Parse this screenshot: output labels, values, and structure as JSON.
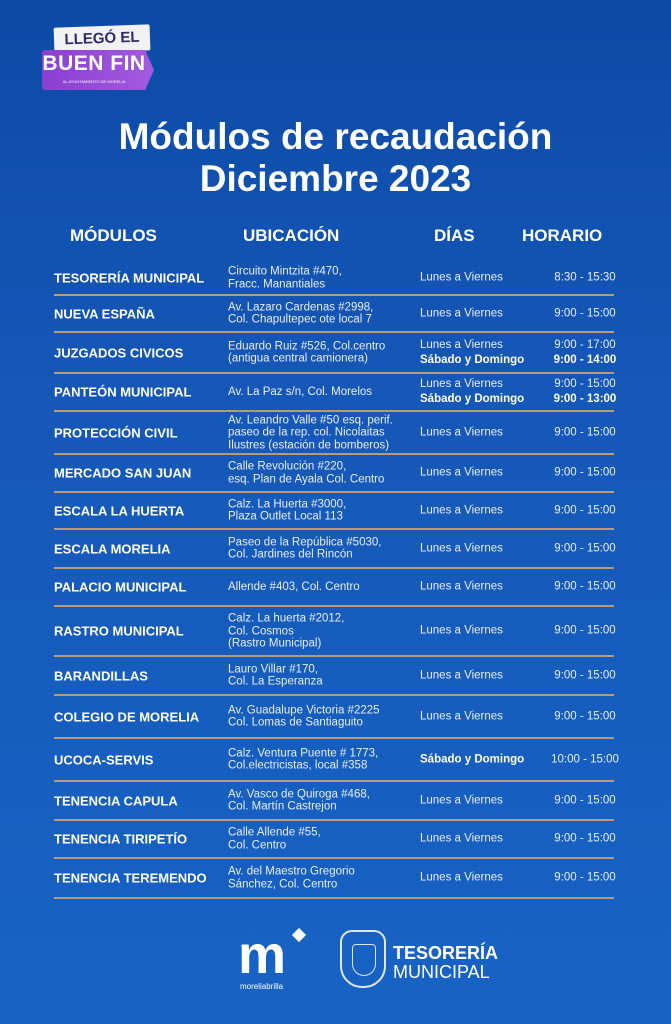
{
  "badge": {
    "line1": "LLEGÓ EL",
    "line2": "BUEN FIN",
    "line3": "AL AYUNTAMIENTO DE MORELIA",
    "color": "#9b4fdc"
  },
  "title": {
    "line1": "Módulos de recaudación",
    "line2": "Diciembre 2023"
  },
  "headers": {
    "modules": "MÓDULOS",
    "location": "UBICACIÓN",
    "days": "DÍAS",
    "hours": "HORARIO"
  },
  "rows": [
    {
      "module": "TESORERÍA MUNICIPAL",
      "address": [
        "Circuito Mintzita #470,",
        "Fracc. Manantiales"
      ],
      "days": [
        "Lunes a Viernes"
      ],
      "hours": [
        "8:30 - 15:30"
      ]
    },
    {
      "module": "NUEVA ESPAÑA",
      "address": [
        "Av. Lazaro Cardenas #2998,",
        "Col. Chapultepec ote local 7"
      ],
      "days": [
        "Lunes a Viernes"
      ],
      "hours": [
        "9:00 - 15:00"
      ]
    },
    {
      "module": "JUZGADOS CIVICOS",
      "address": [
        "Eduardo Ruiz #526, Col.centro",
        "(antigua central camionera)"
      ],
      "days": [
        "Lunes a Viernes",
        "Sábado y Domingo"
      ],
      "hours": [
        "9:00 - 17:00",
        "9:00 - 14:00"
      ]
    },
    {
      "module": "PANTEÓN MUNICIPAL",
      "address": [
        "Av. La Paz s/n, Col. Morelos"
      ],
      "days": [
        "Lunes a Viernes",
        "Sábado y Domingo"
      ],
      "hours": [
        "9:00 - 15:00",
        "9:00 - 13:00"
      ]
    },
    {
      "module": "PROTECCIÓN CIVIL",
      "address": [
        "Av. Leandro Valle #50 esq. perif.",
        "paseo de la rep. col. Nicolaitas",
        "Ilustres (estación de bomberos)"
      ],
      "days": [
        "Lunes a Viernes"
      ],
      "hours": [
        "9:00 - 15:00"
      ]
    },
    {
      "module": "MERCADO SAN JUAN",
      "address": [
        "Calle Revolución #220,",
        "esq. Plan de Ayala Col. Centro"
      ],
      "days": [
        "Lunes a Viernes"
      ],
      "hours": [
        "9:00 - 15:00"
      ]
    },
    {
      "module": "ESCALA LA HUERTA",
      "address": [
        "Calz. La Huerta #3000,",
        "Plaza Outlet Local 113"
      ],
      "days": [
        "Lunes a Viernes"
      ],
      "hours": [
        "9:00 - 15:00"
      ]
    },
    {
      "module": "ESCALA MORELIA",
      "address": [
        "Paseo de la República #5030,",
        "Col. Jardines del Rincón"
      ],
      "days": [
        "Lunes a Viernes"
      ],
      "hours": [
        "9:00 - 15:00"
      ]
    },
    {
      "module": "PALACIO MUNICIPAL",
      "address": [
        "Allende #403, Col. Centro"
      ],
      "days": [
        "Lunes a Viernes"
      ],
      "hours": [
        "9:00 - 15:00"
      ]
    },
    {
      "module": "RASTRO MUNICIPAL",
      "address": [
        "Calz. La huerta #2012,",
        "Col. Cosmos",
        "(Rastro Municipal)"
      ],
      "days": [
        "Lunes a Viernes"
      ],
      "hours": [
        "9:00 - 15:00"
      ]
    },
    {
      "module": "BARANDILLAS",
      "address": [
        "Lauro Villar #170,",
        "Col. La Esperanza"
      ],
      "days": [
        "Lunes a Viernes"
      ],
      "hours": [
        "9:00 - 15:00"
      ]
    },
    {
      "module": "COLEGIO DE MORELIA",
      "address": [
        "Av. Guadalupe Victoria #2225",
        "Col. Lomas de Santiaguito"
      ],
      "days": [
        "Lunes a Viernes"
      ],
      "hours": [
        "9:00 - 15:00"
      ]
    },
    {
      "module": "UCOCA-SERVIS",
      "address": [
        "Calz. Ventura Puente # 1773,",
        "Col.electricistas, local #358"
      ],
      "days": [
        "Sábado y Domingo"
      ],
      "hours": [
        "10:00 - 15:00"
      ],
      "bold_days": true
    },
    {
      "module": "TENENCIA CAPULA",
      "address": [
        "Av. Vasco de Quiroga #468,",
        "Col. Martín Castrejon"
      ],
      "days": [
        "Lunes a Viernes"
      ],
      "hours": [
        "9:00 - 15:00"
      ]
    },
    {
      "module": "TENENCIA TIRIPETÍO",
      "address": [
        "Calle Allende #55,",
        "Col. Centro"
      ],
      "days": [
        "Lunes a Viernes"
      ],
      "hours": [
        "9:00 - 15:00"
      ]
    },
    {
      "module": "TENENCIA TEREMENDO",
      "address": [
        "Av. del Maestro Gregorio",
        "Sánchez, Col. Centro"
      ],
      "days": [
        "Lunes a Viernes"
      ],
      "hours": [
        "9:00 - 15:00"
      ]
    }
  ],
  "footer": {
    "logo_text": "m",
    "logo_tag": "moreliabrilla",
    "org_line1": "TESORERÍA",
    "org_line2": "MUNICIPAL"
  },
  "colors": {
    "background": "#1658b8",
    "divider": "#b89a78"
  }
}
